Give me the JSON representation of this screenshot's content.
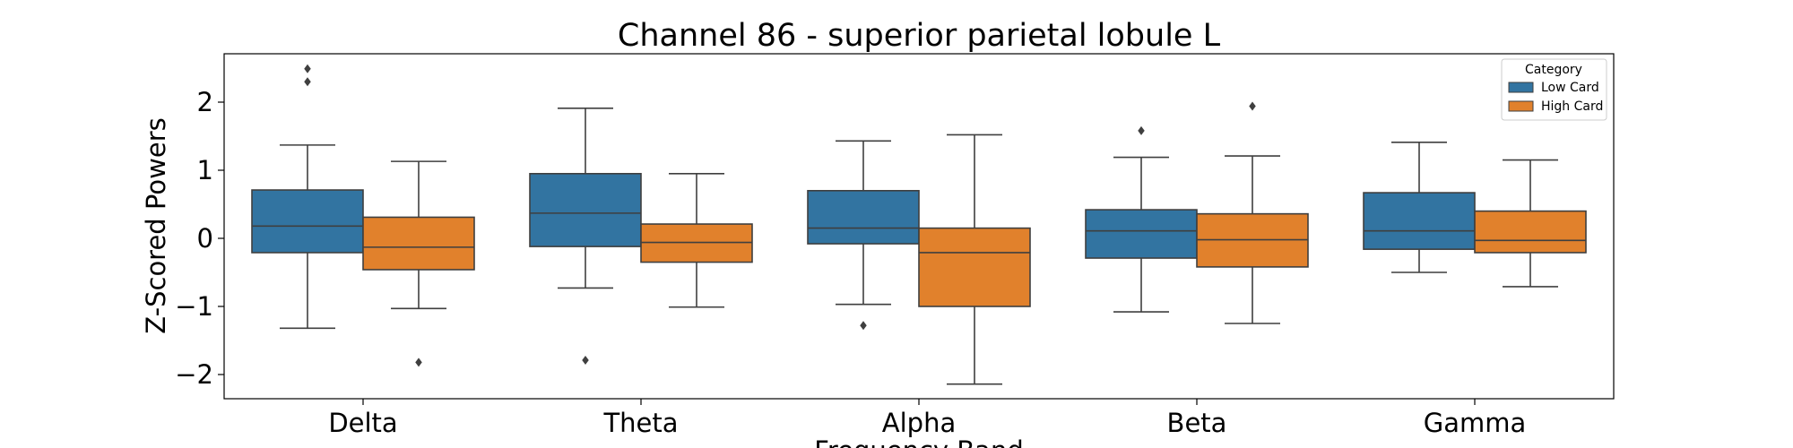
{
  "chart_data": {
    "type": "box",
    "title": "Channel 86 - superior parietal lobule L",
    "xlabel": "Frequency Band",
    "ylabel": "Z-Scored Powers",
    "categories": [
      "Delta",
      "Theta",
      "Alpha",
      "Beta",
      "Gamma"
    ],
    "yticks": [
      -2,
      -1,
      0,
      1,
      2
    ],
    "ytick_labels": [
      "−2",
      "−1",
      "0",
      "1",
      "2"
    ],
    "ylim": [
      -2.35,
      2.7
    ],
    "grid": false,
    "legend": {
      "title": "Category",
      "position": "top-right"
    },
    "series": [
      {
        "name": "Low Card",
        "color": "#3274a1",
        "boxes": [
          {
            "category": "Delta",
            "whisker_low": -1.32,
            "q1": -0.21,
            "median": 0.18,
            "q3": 0.71,
            "whisker_high": 1.37,
            "outliers": [
              2.3,
              2.49
            ]
          },
          {
            "category": "Theta",
            "whisker_low": -0.73,
            "q1": -0.12,
            "median": 0.37,
            "q3": 0.95,
            "whisker_high": 1.91,
            "outliers": [
              -1.79
            ]
          },
          {
            "category": "Alpha",
            "whisker_low": -0.97,
            "q1": -0.08,
            "median": 0.15,
            "q3": 0.7,
            "whisker_high": 1.43,
            "outliers": [
              -1.28
            ]
          },
          {
            "category": "Beta",
            "whisker_low": -1.08,
            "q1": -0.29,
            "median": 0.11,
            "q3": 0.42,
            "whisker_high": 1.19,
            "outliers": [
              1.58
            ]
          },
          {
            "category": "Gamma",
            "whisker_low": -0.5,
            "q1": -0.16,
            "median": 0.11,
            "q3": 0.67,
            "whisker_high": 1.41,
            "outliers": []
          }
        ]
      },
      {
        "name": "High Card",
        "color": "#e1812c",
        "boxes": [
          {
            "category": "Delta",
            "whisker_low": -1.03,
            "q1": -0.46,
            "median": -0.13,
            "q3": 0.31,
            "whisker_high": 1.13,
            "outliers": [
              -1.82
            ]
          },
          {
            "category": "Theta",
            "whisker_low": -1.01,
            "q1": -0.35,
            "median": -0.06,
            "q3": 0.21,
            "whisker_high": 0.95,
            "outliers": []
          },
          {
            "category": "Alpha",
            "whisker_low": -2.14,
            "q1": -1.0,
            "median": -0.21,
            "q3": 0.15,
            "whisker_high": 1.52,
            "outliers": []
          },
          {
            "category": "Beta",
            "whisker_low": -1.25,
            "q1": -0.42,
            "median": -0.02,
            "q3": 0.36,
            "whisker_high": 1.21,
            "outliers": [
              1.94
            ]
          },
          {
            "category": "Gamma",
            "whisker_low": -0.71,
            "q1": -0.21,
            "median": -0.03,
            "q3": 0.4,
            "whisker_high": 1.15,
            "outliers": []
          }
        ]
      }
    ]
  }
}
